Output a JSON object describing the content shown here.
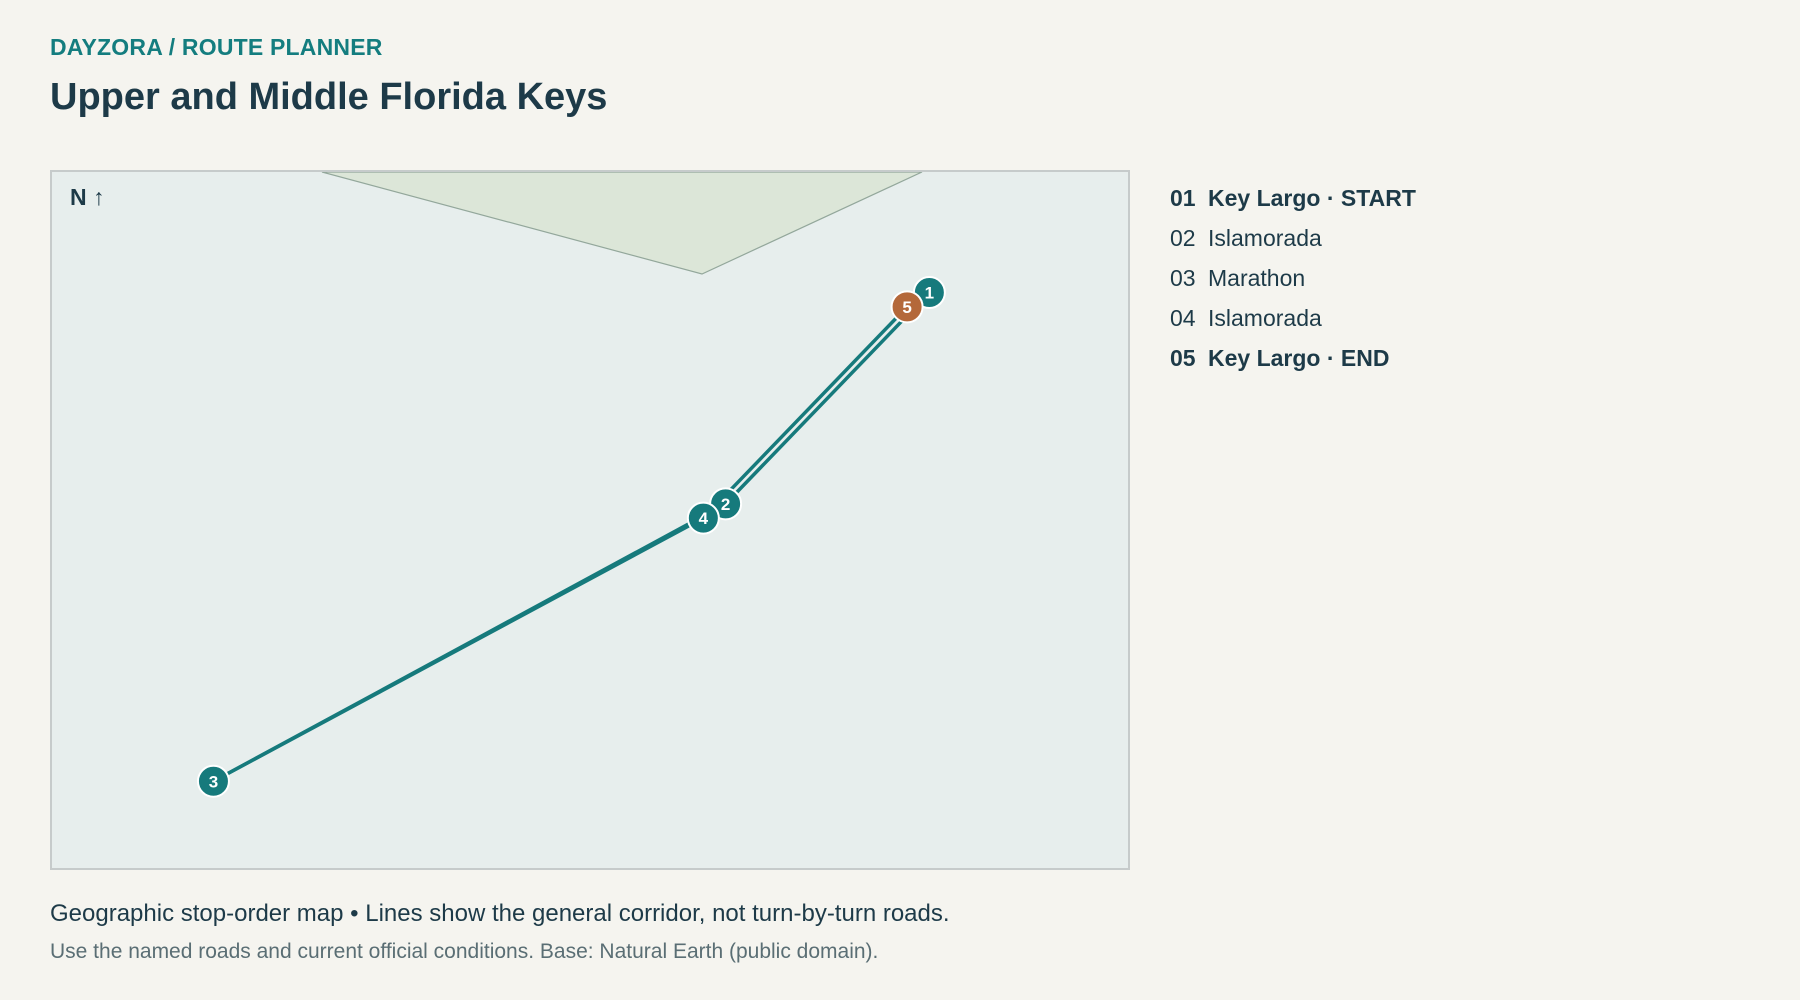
{
  "app": {
    "breadcrumb": "DAYZORA / ROUTE PLANNER",
    "title": "Upper and Middle Florida Keys"
  },
  "map": {
    "north_label": "N ↑",
    "colors": {
      "water": "#e7eeed",
      "land": "#dce6d8",
      "route": "#167a7c",
      "stop_marker": "#167a7c",
      "end_marker": "#b4683a",
      "marker_text": "#ffffff"
    },
    "stops": [
      {
        "num": "1",
        "name": "Key Largo",
        "role": "start",
        "lon": -80.447,
        "lat": 25.087
      },
      {
        "num": "2",
        "name": "Islamorada",
        "role": "stop",
        "lon": -80.63,
        "lat": 24.924
      },
      {
        "num": "3",
        "name": "Marathon",
        "role": "stop",
        "lon": -81.09,
        "lat": 24.71
      },
      {
        "num": "4",
        "name": "Islamorada",
        "role": "stop",
        "lon": -80.65,
        "lat": 24.913
      },
      {
        "num": "5",
        "name": "Key Largo",
        "role": "end",
        "lon": -80.467,
        "lat": 25.076
      }
    ]
  },
  "itinerary": [
    {
      "num": "01",
      "label": "Key Largo · START",
      "bold": true
    },
    {
      "num": "02",
      "label": "Islamorada",
      "bold": false
    },
    {
      "num": "03",
      "label": "Marathon",
      "bold": false
    },
    {
      "num": "04",
      "label": "Islamorada",
      "bold": false
    },
    {
      "num": "05",
      "label": "Key Largo · END",
      "bold": true
    }
  ],
  "footer": {
    "note": "Geographic stop-order map • Lines show the general corridor, not turn-by-turn roads.",
    "sub": "Use the named roads and current official conditions. Base: Natural Earth (public domain)."
  }
}
